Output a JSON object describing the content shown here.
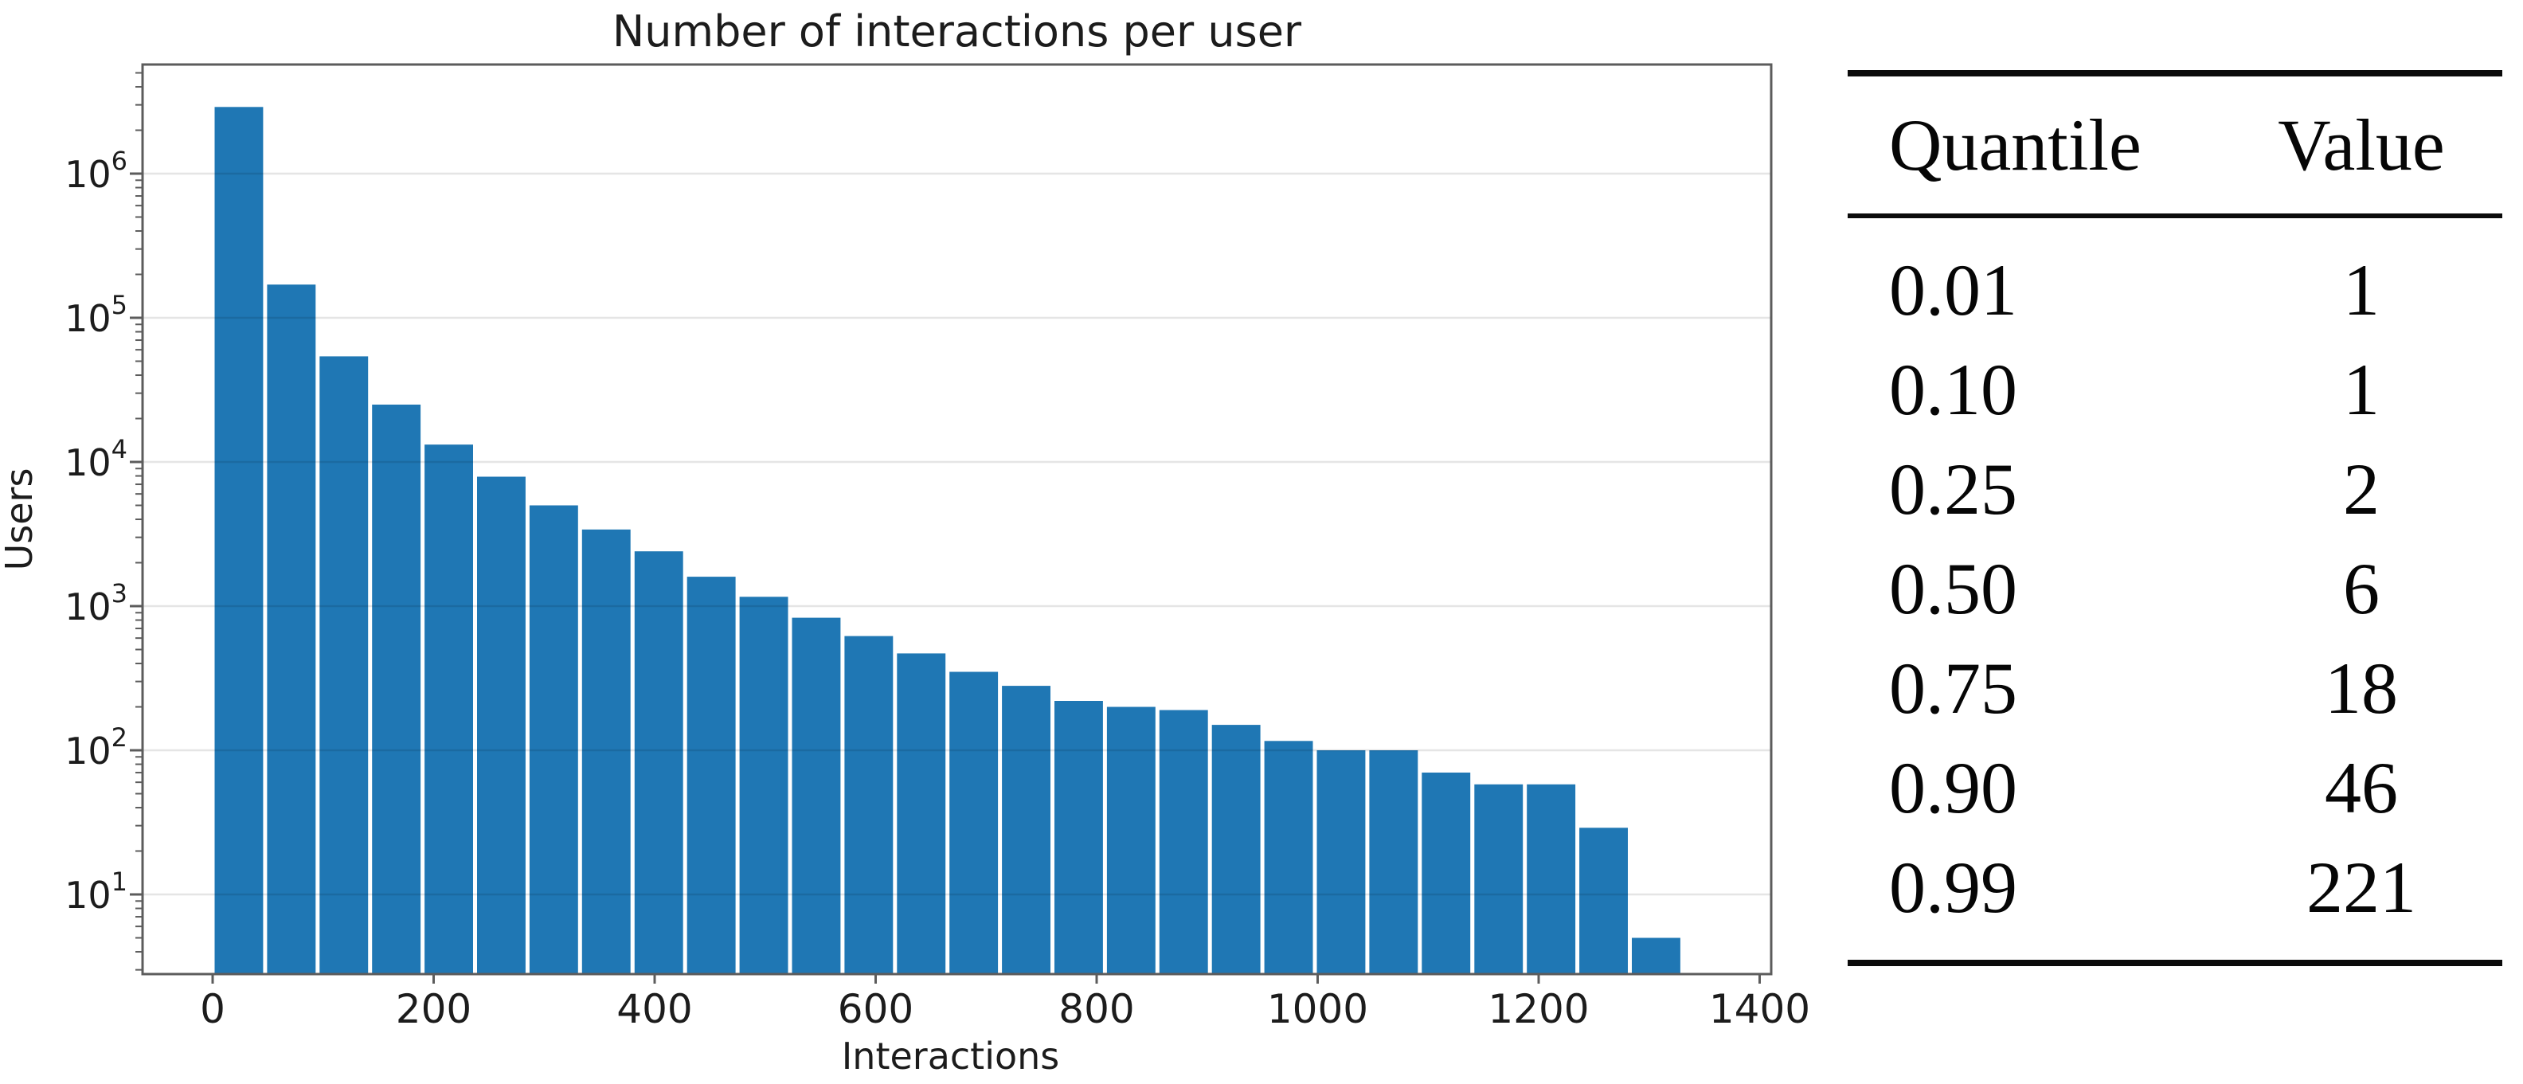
{
  "figure": {
    "background": "#ffffff"
  },
  "chart_data": {
    "type": "bar",
    "title": "Number of interactions per user",
    "xlabel": "Interactions",
    "ylabel": "Users",
    "yscale": "log",
    "grid": true,
    "legend": "none",
    "bin_start": 0,
    "bin_width": 47.5,
    "values": [
      2900000,
      170000,
      54000,
      25000,
      13200,
      7900,
      5000,
      3400,
      2400,
      1600,
      1160,
      830,
      620,
      470,
      350,
      280,
      220,
      200,
      190,
      150,
      116,
      100,
      100,
      70,
      58,
      58,
      29,
      5
    ],
    "xticks": [
      0,
      200,
      400,
      600,
      800,
      1000,
      1200,
      1400
    ],
    "ytick_exponents": [
      1,
      2,
      3,
      4,
      5,
      6
    ],
    "xlim": [
      -63,
      1410
    ],
    "ylim": [
      2.8,
      5600000
    ]
  },
  "table": {
    "headers": [
      "Quantile",
      "Value"
    ],
    "rows": [
      {
        "quantile": "0.01",
        "value": "1"
      },
      {
        "quantile": "0.10",
        "value": "1"
      },
      {
        "quantile": "0.25",
        "value": "2"
      },
      {
        "quantile": "0.50",
        "value": "6"
      },
      {
        "quantile": "0.75",
        "value": "18"
      },
      {
        "quantile": "0.90",
        "value": "46"
      },
      {
        "quantile": "0.99",
        "value": "221"
      }
    ]
  },
  "colors": {
    "bar": "#1f77b4",
    "grid": "rgba(0,0,0,0.10)",
    "spine": "#5c5c5c",
    "tick": "#444444",
    "chart_text": "#1c1c1c",
    "table_rule": "#0b0b0b"
  }
}
